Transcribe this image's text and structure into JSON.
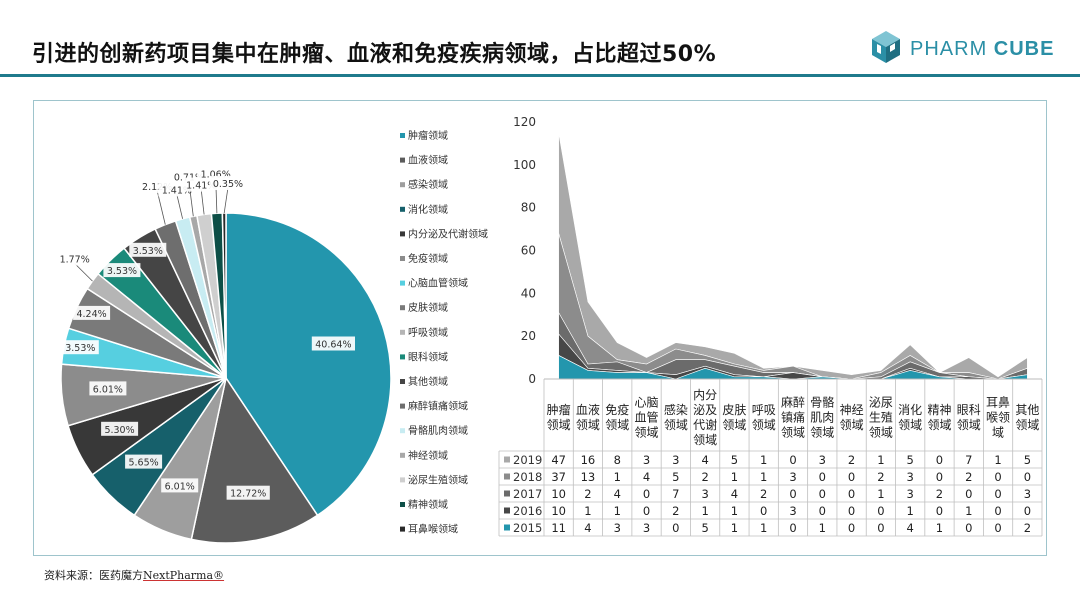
{
  "header": {
    "title": "引进的创新药项目集中在肿瘤、血液和免疫疾病领域，占比超过50%",
    "logo_light": "PHARM",
    "logo_bold": "CUBE",
    "brand_color": "#2b8fa6"
  },
  "footer": {
    "source_prefix": "资料来源：医药魔方",
    "source_brand": "NextPharma®"
  },
  "chart_data": [
    {
      "type": "pie",
      "labels": [
        "肿瘤领域",
        "血液领域",
        "感染领域",
        "消化领域",
        "内分泌及代谢领域",
        "免疫领域",
        "心脑血管领域",
        "皮肤领域",
        "呼吸领域",
        "眼科领域",
        "其他领域",
        "麻醉镇痛领域",
        "骨骼肌肉领域",
        "神经领域",
        "泌尿生殖领域",
        "精神领域",
        "耳鼻喉领域"
      ],
      "values": [
        40.64,
        12.72,
        6.01,
        5.65,
        5.3,
        6.01,
        3.53,
        4.24,
        1.77,
        3.53,
        3.53,
        2.12,
        1.41,
        0.71,
        1.41,
        1.06,
        0.35
      ],
      "data_labels": [
        "40.64%",
        "12.72%",
        "6.01%",
        "5.65%",
        "5.30%",
        "6.01%",
        "3.53%",
        "4.24%",
        "1.77%",
        "3.53%",
        "3.53%",
        "2.12%",
        "1.41%",
        "0.71%",
        "1.41%",
        "1.06%",
        "0.35%"
      ],
      "colors": [
        "#2396ad",
        "#5c5c5c",
        "#9e9e9e",
        "#16606b",
        "#383838",
        "#8c8c8c",
        "#56cfe0",
        "#7a7a7a",
        "#b5b5b5",
        "#1a8a7a",
        "#454545",
        "#6e6e6e",
        "#c8ecf2",
        "#a8a8a8",
        "#cfcfcf",
        "#0d4f47",
        "#2a2a2a"
      ],
      "legend_position": "right"
    },
    {
      "type": "area",
      "stacked": true,
      "categories": [
        "肿瘤领域",
        "血液领域",
        "免疫领域",
        "心脑血管领域",
        "感染领域",
        "内分泌及代谢领域",
        "皮肤领域",
        "呼吸领域",
        "麻醉镇痛领域",
        "骨骼肌肉领域",
        "神经领域",
        "泌尿生殖领域",
        "消化领域",
        "精神领域",
        "眼科领域",
        "耳鼻喉领域",
        "其他领域"
      ],
      "series": [
        {
          "name": "2019",
          "values": [
            47,
            16,
            8,
            3,
            3,
            4,
            5,
            1,
            0,
            3,
            2,
            1,
            5,
            0,
            7,
            1,
            5
          ],
          "color": "#a9a9a9"
        },
        {
          "name": "2018",
          "values": [
            37,
            13,
            1,
            4,
            5,
            2,
            1,
            1,
            3,
            0,
            0,
            2,
            3,
            0,
            2,
            0,
            0
          ],
          "color": "#8c8c8c"
        },
        {
          "name": "2017",
          "values": [
            10,
            2,
            4,
            0,
            7,
            3,
            4,
            2,
            0,
            0,
            0,
            1,
            3,
            2,
            0,
            0,
            3
          ],
          "color": "#6b6b6b"
        },
        {
          "name": "2016",
          "values": [
            10,
            1,
            1,
            0,
            2,
            1,
            1,
            0,
            3,
            0,
            0,
            0,
            1,
            0,
            1,
            0,
            0
          ],
          "color": "#474747"
        },
        {
          "name": "2015",
          "values": [
            11,
            4,
            3,
            3,
            0,
            5,
            1,
            1,
            0,
            1,
            0,
            0,
            4,
            1,
            0,
            0,
            2
          ],
          "color": "#2396ad"
        }
      ],
      "ylim": [
        0,
        120
      ],
      "yticks": [
        "0",
        "20",
        "40",
        "60",
        "80",
        "100",
        "120"
      ],
      "table": true
    }
  ]
}
